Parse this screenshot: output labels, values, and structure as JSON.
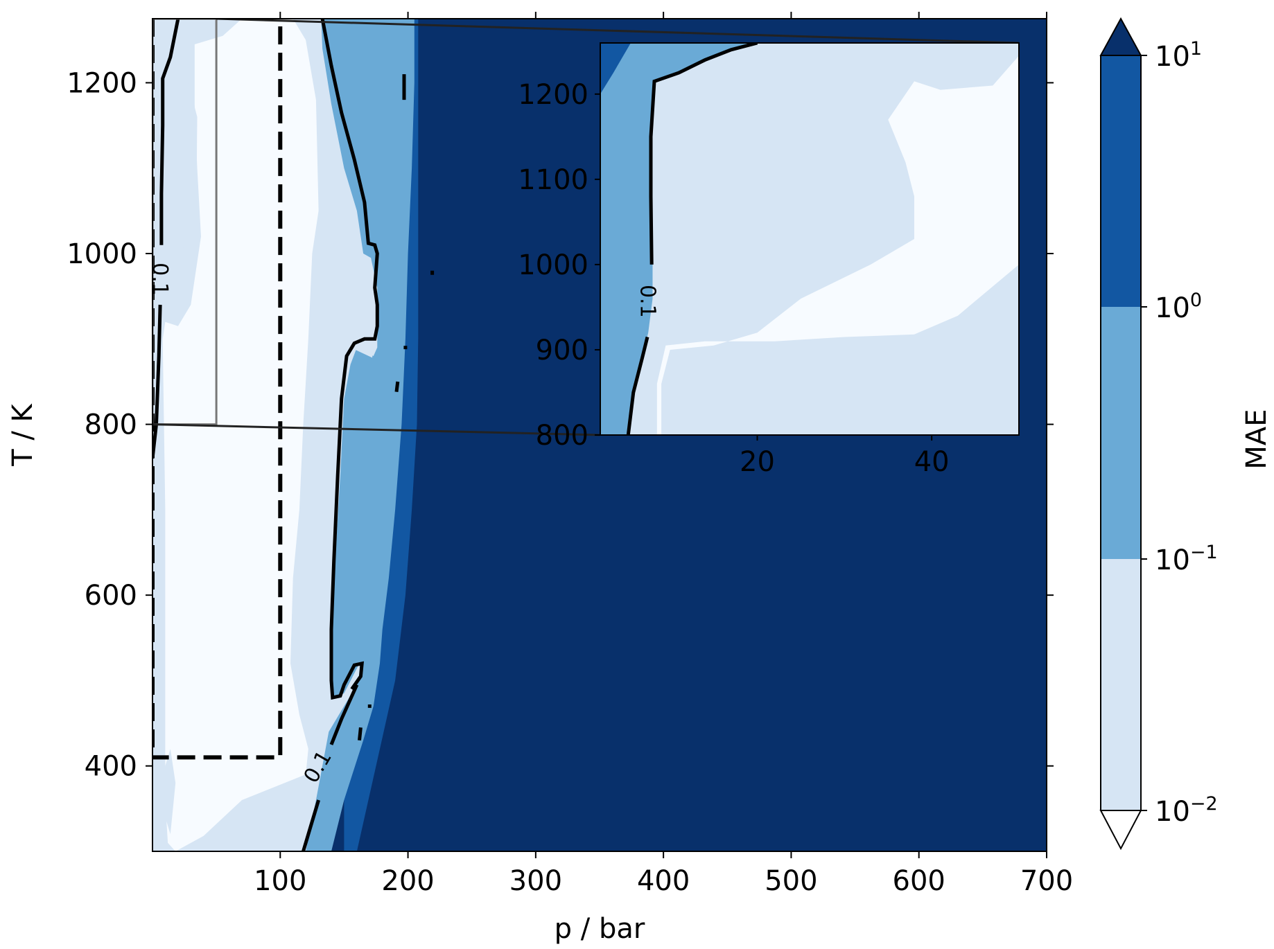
{
  "chart_data": {
    "type": "heatmap",
    "subtype": "filled-contour",
    "title": "",
    "xlabel": "p / bar",
    "ylabel": "T / K",
    "xlim": [
      0,
      700
    ],
    "ylim": [
      300,
      1275
    ],
    "x_ticks": [
      100,
      200,
      300,
      400,
      500,
      600,
      700
    ],
    "y_ticks": [
      400,
      600,
      800,
      1000,
      1200
    ],
    "colorbar": {
      "label": "MAE",
      "scale": "log",
      "levels": [
        0.01,
        0.1,
        1,
        10
      ],
      "tick_labels": [
        {
          "base": "10",
          "exp": "−2"
        },
        {
          "base": "10",
          "exp": "−1"
        },
        {
          "base": "10",
          "exp": "0"
        },
        {
          "base": "10",
          "exp": "1"
        }
      ],
      "colors": {
        "under": "#ffffff",
        "band_0.01_0.1": "#d6e5f4",
        "band_0.1_1": "#6aaad6",
        "band_1_10": "#1257a2",
        "over": "#08306b",
        "lowest_fill": "#f7fbff"
      },
      "extend": "both"
    },
    "contour_line": {
      "level": 0.1,
      "label": "0.1"
    },
    "regions": {
      "exp_0_01_region": {
        "p_max": 100,
        "T_min": 410,
        "style": "dashed-rectangle"
      },
      "zoom_source": {
        "p_range": [
          0,
          50
        ],
        "T_range": [
          800,
          1275
        ]
      }
    },
    "inset": {
      "xlim": [
        2,
        50
      ],
      "ylim": [
        800,
        1260
      ],
      "x_ticks": [
        20,
        40
      ],
      "y_ticks": [
        800,
        900,
        1000,
        1100,
        1200
      ],
      "contour_label": "0.1"
    },
    "boundary_profile_0_1_contour": {
      "T": [
        300,
        400,
        480,
        520,
        600,
        700,
        800,
        900,
        1000,
        1100,
        1200,
        1270
      ],
      "p_right": [
        120,
        138,
        140,
        147,
        148,
        150,
        147,
        153,
        176,
        160,
        145,
        132
      ]
    },
    "boundary_profile_saturation_over_10": {
      "T": [
        300,
        400,
        500,
        600,
        700,
        800,
        900,
        1000,
        1100,
        1200,
        1270
      ],
      "p": [
        160,
        175,
        190,
        198,
        203,
        207,
        207,
        208,
        208,
        208,
        208
      ]
    }
  }
}
